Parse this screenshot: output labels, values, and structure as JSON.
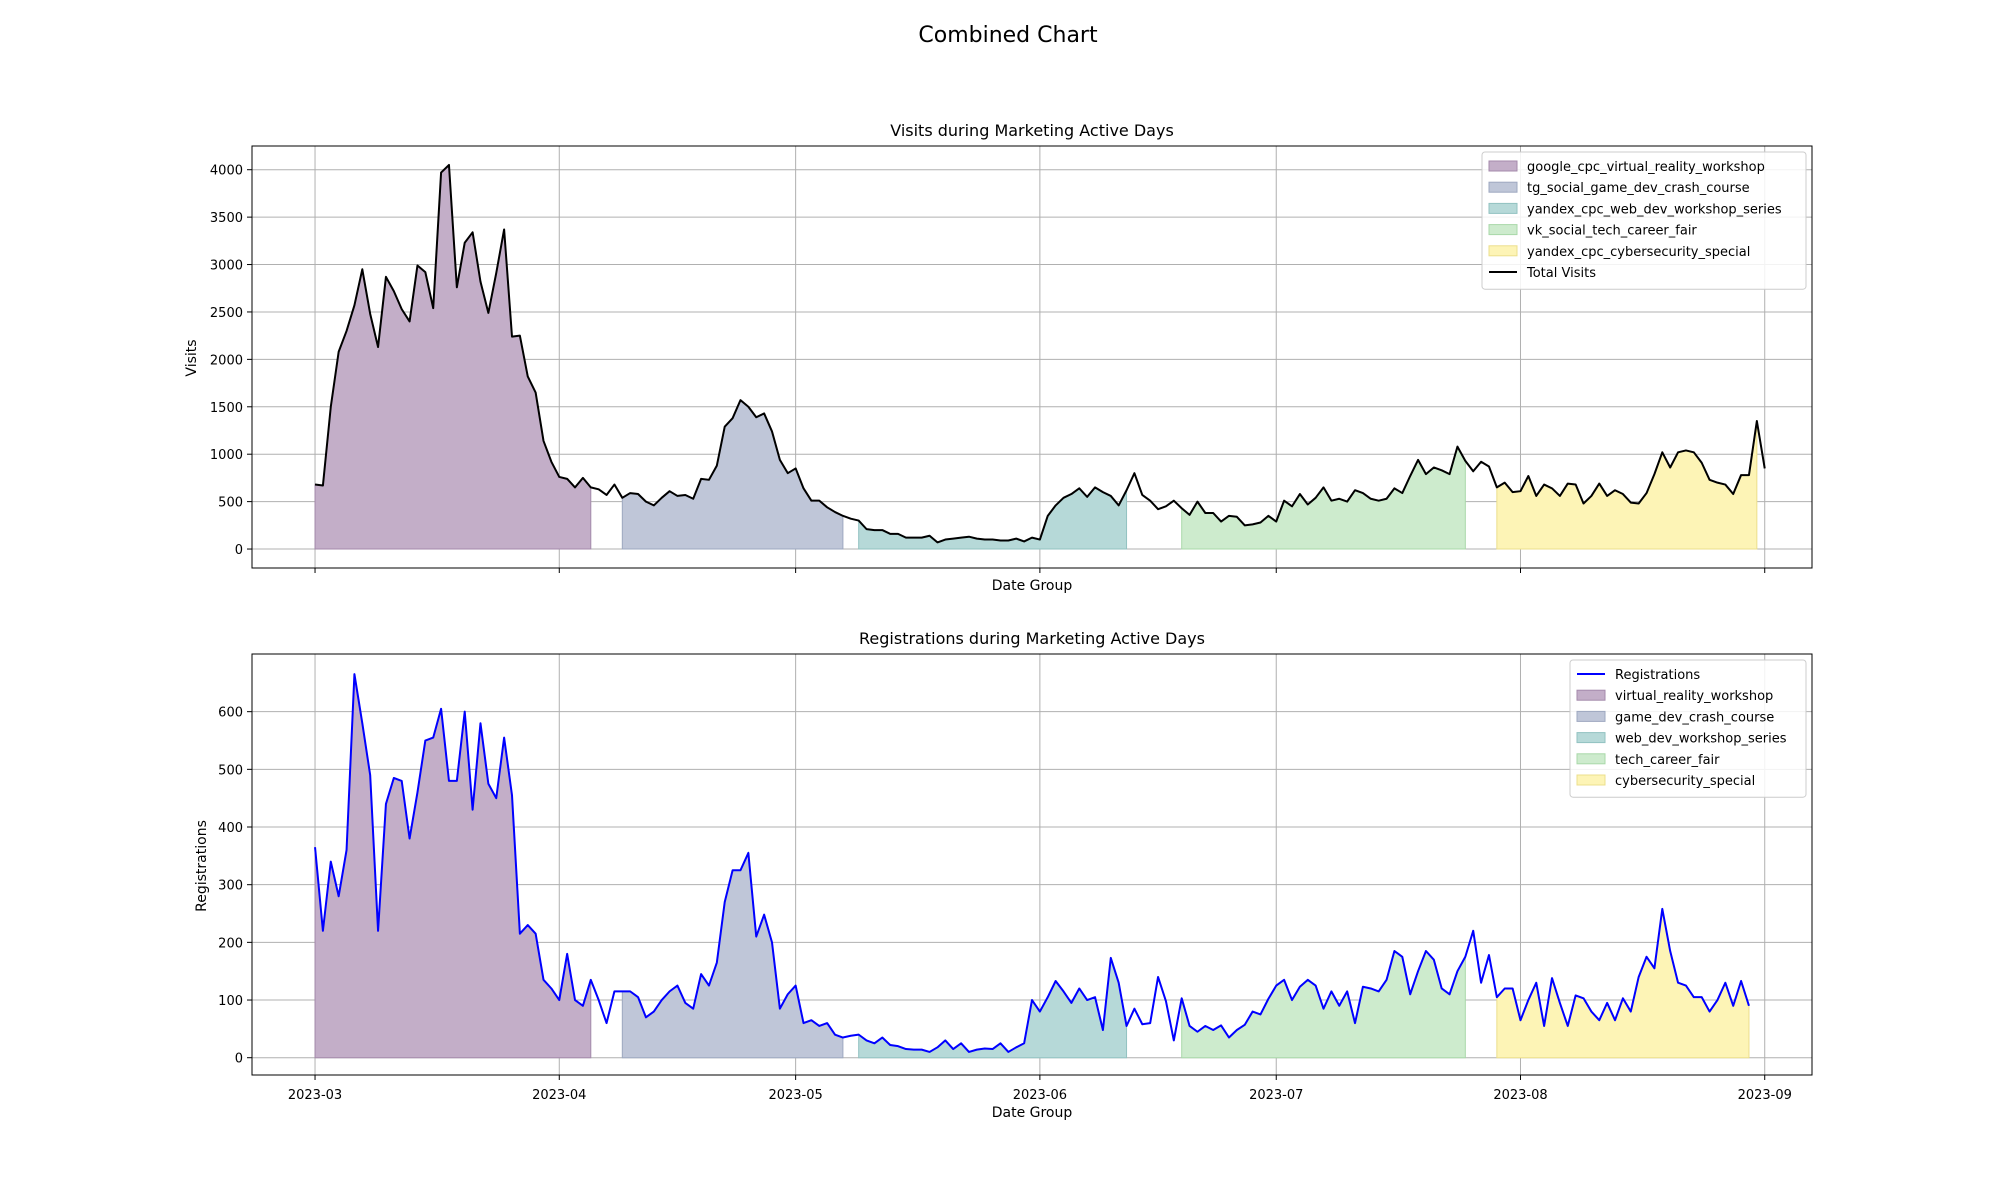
{
  "figure": {
    "title": "Combined Chart"
  },
  "chart_data": [
    {
      "type": "area",
      "title": "Visits during Marketing Active Days",
      "xlabel": "Date Group",
      "ylabel": "Visits",
      "x_start": "2023-03-01",
      "x_end": "2023-08-31",
      "xlim": [
        "2023-02-21",
        "2023-09-07"
      ],
      "ylim": [
        -200,
        4250
      ],
      "y_ticks": [
        0,
        500,
        1000,
        1500,
        2000,
        2500,
        3000,
        3500,
        4000
      ],
      "x_tick_labels": [
        "2023-03",
        "2023-04",
        "2023-05",
        "2023-06",
        "2023-07",
        "2023-08",
        "2023-09"
      ],
      "grid": true,
      "legend_position": "upper right",
      "campaigns": [
        {
          "name": "google_cpc_virtual_reality_workshop",
          "start": "2023-03-01",
          "end": "2023-04-05",
          "color": "#c3aec8",
          "edge": "#a48aab"
        },
        {
          "name": "tg_social_game_dev_crash_course",
          "start": "2023-04-09",
          "end": "2023-05-07",
          "color": "#bfc6d8",
          "edge": "#9ea8c0"
        },
        {
          "name": "yandex_cpc_web_dev_workshop_series",
          "start": "2023-05-09",
          "end": "2023-06-12",
          "color": "#b6d9d8",
          "edge": "#92c2c1"
        },
        {
          "name": "vk_social_tech_career_fair",
          "start": "2023-06-19",
          "end": "2023-07-25",
          "color": "#cdebcd",
          "edge": "#a9d8a9"
        },
        {
          "name": "yandex_cpc_cybersecurity_special",
          "start": "2023-07-29",
          "end": "2023-08-31",
          "color": "#fdf4b6",
          "edge": "#ecdf8c"
        }
      ],
      "series": [
        {
          "name": "Total Visits",
          "color": "#000000",
          "values": [
            680,
            670,
            1500,
            2080,
            2300,
            2570,
            2950,
            2480,
            2130,
            2870,
            2720,
            2530,
            2400,
            2990,
            2920,
            2540,
            3970,
            4050,
            2760,
            3230,
            3340,
            2820,
            2490,
            2910,
            3370,
            2240,
            2250,
            1820,
            1650,
            1140,
            920,
            760,
            740,
            650,
            750,
            650,
            630,
            570,
            680,
            540,
            590,
            580,
            500,
            460,
            540,
            610,
            560,
            570,
            530,
            740,
            730,
            880,
            1290,
            1380,
            1570,
            1500,
            1390,
            1430,
            1240,
            940,
            800,
            850,
            640,
            510,
            510,
            440,
            390,
            350,
            320,
            300,
            210,
            200,
            200,
            160,
            160,
            120,
            120,
            120,
            140,
            70,
            100,
            110,
            120,
            130,
            110,
            100,
            100,
            90,
            90,
            110,
            80,
            120,
            100,
            350,
            460,
            540,
            580,
            640,
            550,
            650,
            600,
            560,
            460,
            620,
            800,
            570,
            510,
            420,
            450,
            510,
            430,
            360,
            500,
            380,
            380,
            290,
            350,
            340,
            250,
            260,
            280,
            350,
            290,
            510,
            450,
            580,
            470,
            540,
            650,
            510,
            530,
            500,
            620,
            590,
            530,
            510,
            530,
            640,
            590,
            770,
            940,
            790,
            860,
            830,
            790,
            1080,
            930,
            820,
            920,
            870,
            650,
            700,
            600,
            610,
            770,
            560,
            680,
            640,
            560,
            690,
            680,
            480,
            560,
            690,
            560,
            620,
            580,
            490,
            480,
            590,
            790,
            1020,
            860,
            1020,
            1040,
            1020,
            910,
            730,
            700,
            680,
            580,
            780,
            780,
            1350,
            850
          ]
        }
      ]
    },
    {
      "type": "area",
      "title": "Registrations during Marketing Active Days",
      "xlabel": "Date Group",
      "ylabel": "Registrations",
      "x_start": "2023-03-01",
      "x_end": "2023-08-31",
      "xlim": [
        "2023-02-21",
        "2023-09-07"
      ],
      "ylim": [
        -30,
        700
      ],
      "y_ticks": [
        0,
        100,
        200,
        300,
        400,
        500,
        600
      ],
      "x_tick_labels": [
        "2023-03",
        "2023-04",
        "2023-05",
        "2023-06",
        "2023-07",
        "2023-08",
        "2023-09"
      ],
      "grid": true,
      "legend_position": "upper right",
      "campaigns": [
        {
          "name": "virtual_reality_workshop",
          "start": "2023-03-01",
          "end": "2023-04-05",
          "color": "#c3aec8",
          "edge": "#a48aab"
        },
        {
          "name": "game_dev_crash_course",
          "start": "2023-04-09",
          "end": "2023-05-07",
          "color": "#bfc6d8",
          "edge": "#9ea8c0"
        },
        {
          "name": "web_dev_workshop_series",
          "start": "2023-05-09",
          "end": "2023-06-12",
          "color": "#b6d9d8",
          "edge": "#92c2c1"
        },
        {
          "name": "tech_career_fair",
          "start": "2023-06-19",
          "end": "2023-07-25",
          "color": "#cdebcd",
          "edge": "#a9d8a9"
        },
        {
          "name": "cybersecurity_special",
          "start": "2023-07-29",
          "end": "2023-08-31",
          "color": "#fdf4b6",
          "edge": "#ecdf8c"
        }
      ],
      "series": [
        {
          "name": "Registrations",
          "color": "#0000ff",
          "values": [
            365,
            220,
            340,
            280,
            360,
            665,
            580,
            490,
            220,
            440,
            485,
            480,
            380,
            460,
            550,
            555,
            605,
            480,
            480,
            600,
            430,
            580,
            475,
            450,
            555,
            455,
            215,
            230,
            215,
            135,
            120,
            100,
            180,
            100,
            90,
            135,
            100,
            60,
            115,
            115,
            115,
            105,
            70,
            80,
            100,
            115,
            125,
            95,
            85,
            145,
            125,
            165,
            270,
            325,
            325,
            355,
            210,
            248,
            200,
            85,
            110,
            125,
            60,
            65,
            55,
            60,
            40,
            35,
            38,
            40,
            30,
            25,
            35,
            22,
            20,
            15,
            14,
            14,
            10,
            18,
            30,
            15,
            25,
            10,
            14,
            16,
            15,
            25,
            10,
            18,
            25,
            100,
            80,
            105,
            133,
            115,
            95,
            120,
            100,
            105,
            48,
            173,
            130,
            55,
            85,
            58,
            60,
            140,
            98,
            30,
            103,
            55,
            45,
            55,
            48,
            56,
            35,
            48,
            57,
            80,
            75,
            102,
            125,
            135,
            100,
            123,
            135,
            125,
            85,
            115,
            90,
            115,
            60,
            123,
            120,
            115,
            135,
            185,
            175,
            110,
            150,
            185,
            170,
            120,
            110,
            150,
            175,
            220,
            130,
            178,
            105,
            120,
            120,
            65,
            100,
            130,
            55,
            138,
            95,
            55,
            108,
            103,
            80,
            65,
            95,
            65,
            103,
            80,
            140,
            175,
            155,
            258,
            185,
            130,
            125,
            105,
            105,
            80,
            100,
            130,
            90,
            133,
            90
          ]
        }
      ]
    }
  ]
}
